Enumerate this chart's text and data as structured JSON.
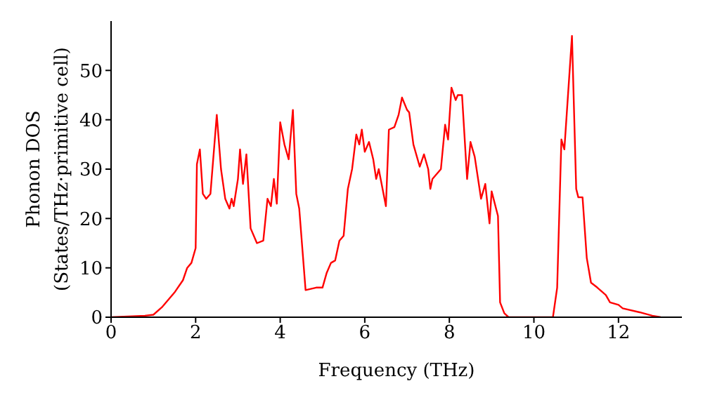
{
  "chart_data": {
    "type": "line",
    "xlabel": "Frequency (THz)",
    "ylabel": "Phonon DOS\n(States/THz·primitive cell)",
    "x": [
      0,
      0.8,
      1.0,
      1.2,
      1.5,
      1.7,
      1.8,
      1.9,
      2.0,
      2.03,
      2.1,
      2.17,
      2.25,
      2.35,
      2.5,
      2.6,
      2.7,
      2.8,
      2.85,
      2.9,
      3.0,
      3.05,
      3.12,
      3.2,
      3.3,
      3.45,
      3.6,
      3.7,
      3.78,
      3.85,
      3.92,
      4.0,
      4.1,
      4.2,
      4.3,
      4.38,
      4.45,
      4.6,
      4.85,
      5.0,
      5.1,
      5.2,
      5.3,
      5.4,
      5.5,
      5.6,
      5.7,
      5.8,
      5.87,
      5.93,
      6.0,
      6.1,
      6.2,
      6.27,
      6.33,
      6.5,
      6.57,
      6.7,
      6.8,
      6.88,
      7.0,
      7.05,
      7.15,
      7.3,
      7.4,
      7.5,
      7.55,
      7.6,
      7.8,
      7.9,
      7.97,
      8.05,
      8.15,
      8.2,
      8.3,
      8.42,
      8.5,
      8.6,
      8.75,
      8.85,
      8.95,
      9.0,
      9.15,
      9.2,
      9.3,
      9.4,
      10.45,
      10.55,
      10.65,
      10.72,
      10.9,
      11.0,
      11.05,
      11.15,
      11.25,
      11.35,
      11.5,
      11.7,
      11.8,
      12.0,
      12.1,
      12.5,
      12.8,
      13.0
    ],
    "series": [
      {
        "color": "#ff0000",
        "values": [
          0,
          0.3,
          0.5,
          2,
          5,
          7.5,
          10,
          11,
          14,
          31,
          34,
          25,
          24,
          25,
          41,
          30,
          24,
          22,
          24,
          22.5,
          28,
          34,
          27,
          33,
          18,
          15,
          15.5,
          24,
          22.5,
          28,
          23,
          39.5,
          35,
          32,
          42,
          25,
          22,
          5.5,
          6,
          6,
          9,
          11,
          11.5,
          15.5,
          16.5,
          26,
          30,
          37,
          35,
          38,
          33.5,
          35.5,
          32,
          28,
          30,
          22.5,
          38,
          38.5,
          41,
          44.5,
          42,
          41.5,
          35,
          30.5,
          33,
          30,
          26,
          28,
          30,
          39,
          36,
          46.5,
          44,
          45,
          45,
          28,
          35.5,
          32.5,
          24,
          27,
          19,
          25.5,
          20.5,
          3,
          0.8,
          0,
          0,
          6,
          36,
          34,
          57,
          26,
          24.3,
          24.3,
          12,
          7,
          6,
          4.5,
          3,
          2.5,
          1.8,
          1,
          0.3,
          0
        ]
      }
    ],
    "xlim": [
      0,
      13.5
    ],
    "xticks": [
      0,
      2,
      4,
      6,
      8,
      10,
      12
    ],
    "ylim": [
      0,
      60
    ],
    "yticks": [
      0,
      10,
      20,
      30,
      40,
      50
    ],
    "grid": false,
    "legend": false,
    "marker": "none",
    "line_style": "solid"
  }
}
